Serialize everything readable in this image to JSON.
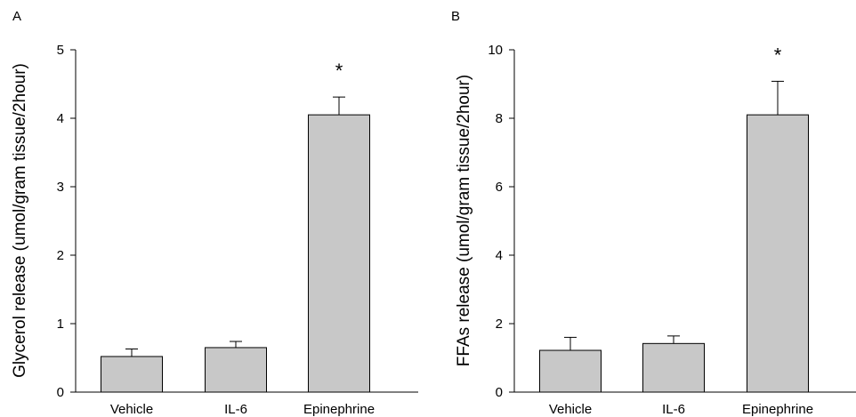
{
  "chart_data": [
    {
      "type": "bar",
      "panel_label": "A",
      "categories": [
        "Vehicle",
        "IL-6",
        "Epinephrine"
      ],
      "values": [
        0.52,
        0.65,
        4.05
      ],
      "errors": [
        0.11,
        0.09,
        0.26
      ],
      "annotations": [
        "",
        "",
        "*"
      ],
      "ylabel": "Glycerol release (umol/gram tissue/2hour)",
      "xlabel": "",
      "ylim": [
        0,
        5
      ],
      "yticks": [
        "0",
        "1",
        "2",
        "3",
        "4",
        "5"
      ],
      "bar_color": "#c8c8c8",
      "grid": false
    },
    {
      "type": "bar",
      "panel_label": "B",
      "categories": [
        "Vehicle",
        "IL-6",
        "Epinephrine"
      ],
      "values": [
        1.22,
        1.42,
        8.1
      ],
      "errors": [
        0.38,
        0.22,
        0.98
      ],
      "annotations": [
        "",
        "",
        "*"
      ],
      "ylabel": "FFAs release (umol/gram tissue/2hour)",
      "xlabel": "",
      "ylim": [
        0,
        10
      ],
      "yticks": [
        "0",
        "2",
        "4",
        "6",
        "8",
        "10"
      ],
      "bar_color": "#c8c8c8",
      "grid": false
    }
  ]
}
